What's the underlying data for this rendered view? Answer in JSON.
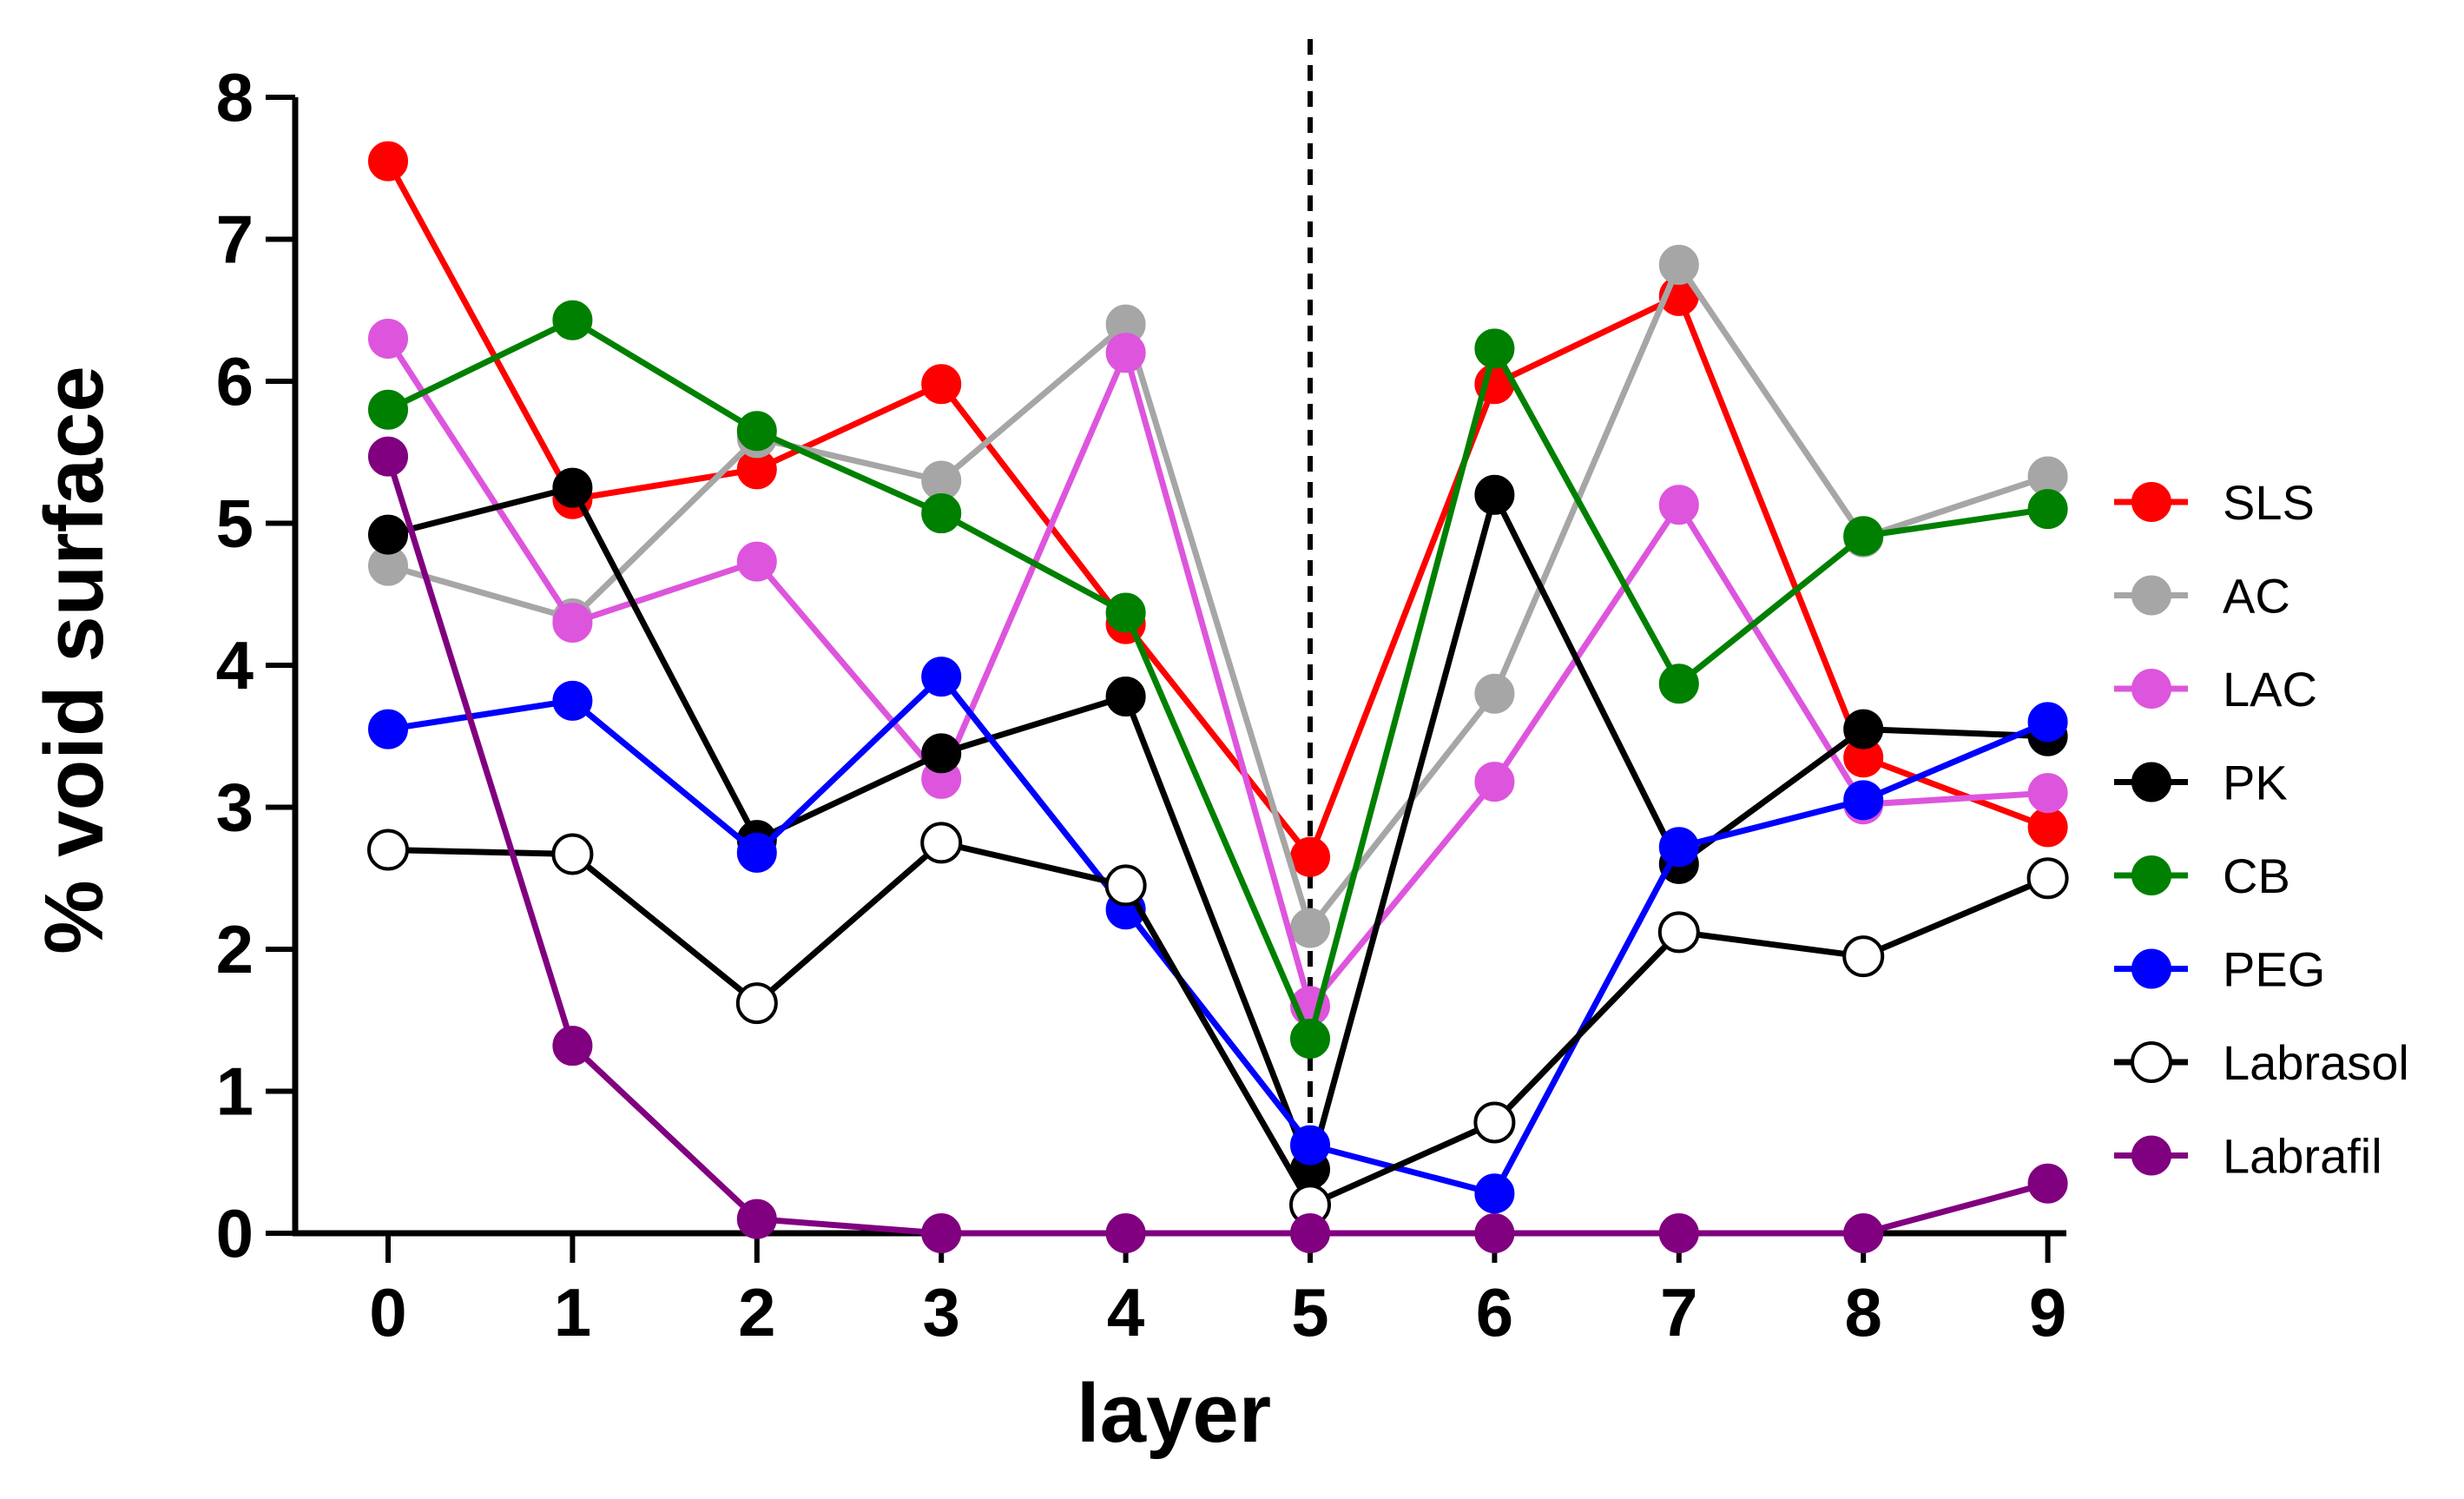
{
  "chart_data": {
    "type": "line",
    "title": "",
    "xlabel": "layer",
    "ylabel": "% void surface",
    "xlim": [
      0,
      9
    ],
    "ylim": [
      0,
      8
    ],
    "x": [
      0,
      1,
      2,
      3,
      4,
      5,
      6,
      7,
      8,
      9
    ],
    "x_tick_labels": [
      "0",
      "1",
      "2",
      "3",
      "4",
      "5",
      "6",
      "7",
      "8",
      "9"
    ],
    "y_tick_labels": [
      "0",
      "1",
      "2",
      "3",
      "4",
      "5",
      "6",
      "7",
      "8"
    ],
    "reference_line": {
      "x": 5,
      "style": "dashed"
    },
    "grid": false,
    "legend_position": "right",
    "series": [
      {
        "name": "SLS",
        "color": "#ff0000",
        "marker": "filled",
        "values": [
          7.55,
          5.17,
          5.38,
          5.98,
          4.29,
          2.65,
          5.98,
          6.6,
          3.35,
          2.86
        ]
      },
      {
        "name": "AC",
        "color": "#a6a6a6",
        "marker": "filled",
        "values": [
          4.7,
          4.33,
          5.6,
          5.3,
          6.4,
          2.15,
          3.8,
          6.82,
          4.9,
          5.33
        ]
      },
      {
        "name": "LAC",
        "color": "#dd55dd",
        "marker": "filled",
        "values": [
          6.3,
          4.3,
          4.73,
          3.2,
          6.2,
          1.6,
          3.18,
          5.13,
          3.02,
          3.1
        ]
      },
      {
        "name": "PK",
        "color": "#000000",
        "marker": "filled",
        "values": [
          4.92,
          5.25,
          2.77,
          3.38,
          3.78,
          0.45,
          5.2,
          2.6,
          3.55,
          3.5
        ]
      },
      {
        "name": "CB",
        "color": "#008000",
        "marker": "filled",
        "values": [
          5.8,
          6.43,
          5.65,
          5.07,
          4.37,
          1.37,
          6.23,
          3.87,
          4.91,
          5.1
        ]
      },
      {
        "name": "PEG",
        "color": "#0000ff",
        "marker": "filled",
        "values": [
          3.55,
          3.75,
          2.68,
          3.92,
          2.28,
          0.62,
          0.28,
          2.72,
          3.05,
          3.6
        ]
      },
      {
        "name": "Labrasol",
        "color": "#000000",
        "marker": "open",
        "values": [
          2.7,
          2.67,
          1.62,
          2.75,
          2.45,
          0.2,
          0.78,
          2.12,
          1.95,
          2.5
        ]
      },
      {
        "name": "Labrafil",
        "color": "#800080",
        "marker": "filled",
        "values": [
          5.47,
          1.32,
          0.1,
          0.0,
          0.0,
          0.0,
          0.0,
          0.0,
          0.0,
          0.35
        ]
      }
    ]
  }
}
